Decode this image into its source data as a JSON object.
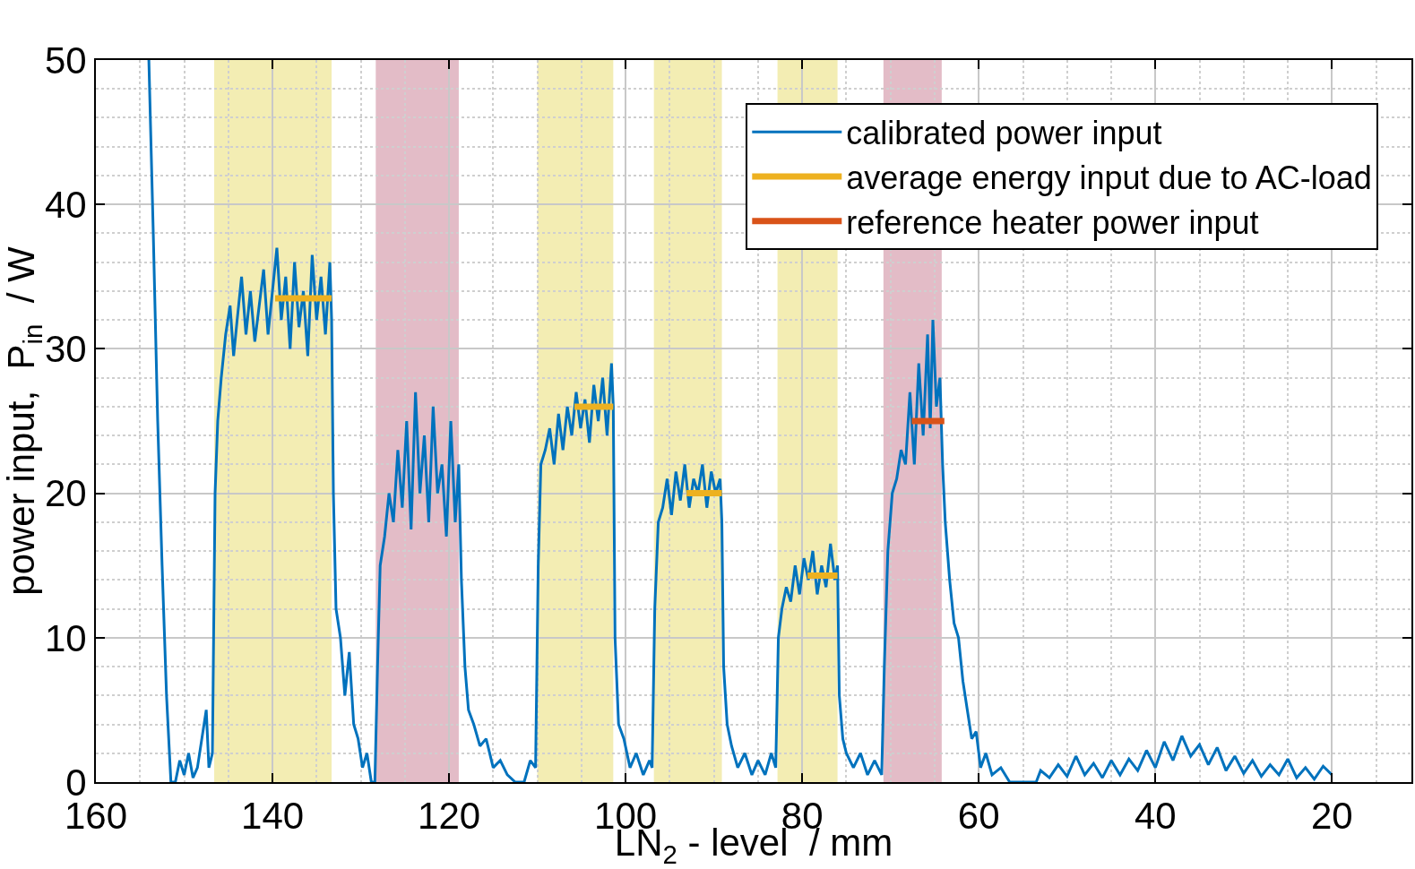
{
  "chart_data": {
    "type": "line",
    "xlabel": "LN$_{2}$ - level  / mm",
    "ylabel": "power input,  P$_{in}$  / W",
    "xlim": [
      160,
      11
    ],
    "xticks": [
      160,
      140,
      120,
      100,
      80,
      60,
      40,
      20
    ],
    "ylim": [
      0,
      50
    ],
    "yticks": [
      0,
      10,
      20,
      30,
      40,
      50
    ],
    "grid": true,
    "legend": "top right",
    "marker": "none",
    "line_style": "solid",
    "series": [
      {
        "name": "calibrated power input",
        "color": "#0072bd",
        "x": [
          154,
          153.5,
          153,
          152.5,
          152,
          151.5,
          151,
          150.5,
          150,
          149.5,
          149,
          148.5,
          148,
          147.5,
          147.2,
          146.8,
          146.5,
          146.2,
          145.8,
          145.3,
          144.8,
          144.4,
          144,
          143.5,
          143,
          142.5,
          142,
          141.5,
          141,
          140.5,
          140,
          139.5,
          139,
          138.5,
          138,
          137.5,
          137,
          136.5,
          136,
          135.5,
          135,
          134.5,
          134,
          133.5,
          133.3,
          133.1,
          132.8,
          132.3,
          131.8,
          131.3,
          130.8,
          130.3,
          129.8,
          129.3,
          128.8,
          128.4,
          128.1,
          127.8,
          127.3,
          126.8,
          126.3,
          125.8,
          125.3,
          124.8,
          124.3,
          123.8,
          123.3,
          122.8,
          122.3,
          121.8,
          121.3,
          120.8,
          120.3,
          119.8,
          119.3,
          118.9,
          118.6,
          118.2,
          117.8,
          117.2,
          116.5,
          115.8,
          115,
          114.2,
          113.4,
          112.5,
          111.5,
          110.8,
          110.2,
          109.9,
          109.6,
          109.1,
          108.6,
          108.1,
          107.6,
          107.1,
          106.6,
          106.1,
          105.6,
          105.1,
          104.6,
          104.1,
          103.6,
          103.1,
          102.6,
          102.1,
          101.6,
          101.4,
          101.2,
          100.8,
          100.2,
          99.5,
          98.8,
          98,
          97.3,
          97,
          96.7,
          96.3,
          95.8,
          95.3,
          94.8,
          94.3,
          93.8,
          93.3,
          92.8,
          92.3,
          91.8,
          91.3,
          90.8,
          90.3,
          89.8,
          89.3,
          89.1,
          88.9,
          88.5,
          88,
          87.3,
          86.5,
          85.7,
          85,
          84.2,
          83.5,
          83,
          82.7,
          82.3,
          81.8,
          81.3,
          80.8,
          80.3,
          79.8,
          79.3,
          78.8,
          78.3,
          77.8,
          77.3,
          76.8,
          76.3,
          76,
          75.8,
          75.4,
          75,
          74.2,
          73.4,
          72.6,
          71.8,
          71,
          70.7,
          70.3,
          69.8,
          69.3,
          68.8,
          68.3,
          67.8,
          67.3,
          66.8,
          66.3,
          65.8,
          65.5,
          65.2,
          64.8,
          64.4,
          64.1,
          63.8,
          63.3,
          62.8,
          62.3,
          61.8,
          61.3,
          60.8,
          60.3,
          59.8,
          59.2,
          58.5,
          57.5,
          56.5,
          53.5,
          53,
          52,
          51,
          50,
          49,
          48,
          47,
          46,
          45,
          44,
          43,
          42,
          41,
          40,
          39,
          38,
          37,
          36,
          35,
          34,
          33,
          32,
          31,
          30,
          29,
          28,
          27,
          26,
          25,
          24,
          23,
          22,
          21,
          20
        ],
        "values": [
          50,
          38,
          25,
          15,
          6,
          0,
          0,
          1.5,
          0.5,
          2,
          0.3,
          1,
          3,
          5,
          1,
          2,
          20,
          25,
          28,
          31,
          33,
          29.5,
          32,
          35,
          31,
          34,
          30.5,
          33,
          35.5,
          31,
          34,
          37,
          32,
          35,
          30,
          36,
          31.5,
          34,
          29.5,
          36.5,
          32,
          35,
          31,
          36,
          32,
          20,
          12,
          10,
          6,
          9,
          4,
          3,
          1,
          2,
          0,
          0,
          8,
          15,
          17,
          20,
          18,
          23,
          19,
          25,
          17.5,
          27,
          20,
          24,
          18,
          26,
          20,
          22,
          17,
          25,
          18,
          22,
          14,
          8,
          5,
          4,
          2.5,
          3,
          1,
          1.5,
          0.5,
          0,
          0,
          1.5,
          1,
          15,
          22,
          23,
          24.5,
          22,
          25.5,
          23,
          26,
          24,
          27,
          24.5,
          26.5,
          23.5,
          27.5,
          25,
          28,
          24,
          29,
          26,
          10,
          4,
          3,
          1,
          2,
          0.5,
          1.5,
          1,
          12,
          18,
          19,
          21,
          18.5,
          21.5,
          19.5,
          22,
          19,
          21,
          20,
          22,
          19,
          21.5,
          20,
          21,
          18,
          8,
          4,
          2.5,
          1,
          2,
          0.5,
          1.5,
          0.5,
          2,
          1,
          10,
          12,
          13.5,
          12.5,
          15,
          13,
          15.5,
          14,
          16,
          13,
          15,
          13.5,
          16.5,
          14,
          15,
          6,
          3,
          2,
          1,
          2,
          0.5,
          1.5,
          0.5,
          8,
          16,
          20,
          21,
          23,
          22,
          27,
          22,
          29,
          24,
          31,
          24.5,
          32,
          26,
          28,
          22,
          18,
          14,
          11,
          10,
          7,
          5,
          3,
          3.5,
          1,
          2,
          0.5,
          1,
          0,
          0,
          0.8,
          0.3,
          1.2,
          0.4,
          1.8,
          0.5,
          1.3,
          0.3,
          1.5,
          0.5,
          1.6,
          0.8,
          2.2,
          1,
          2.8,
          1.5,
          3.2,
          1.8,
          2.6,
          1.2,
          2.4,
          0.8,
          1.8,
          0.6,
          1.5,
          0.4,
          1.2,
          0.5,
          1.6,
          0.3,
          1,
          0.2,
          1.1,
          0.5
        ]
      },
      {
        "name": "average energy input due to AC-load",
        "color": "#edb120",
        "x": [
          139.7,
          133.3,
          null,
          105.8,
          101.4,
          null,
          93.1,
          89.1,
          null,
          79.4,
          76
        ],
        "values": [
          33.5,
          33.5,
          null,
          26,
          26,
          null,
          20,
          20,
          null,
          14.3,
          14.3
        ]
      },
      {
        "name": "reference heater power input",
        "color": "#d95319",
        "x": [
          67.6,
          63.9
        ],
        "values": [
          25,
          25
        ]
      }
    ],
    "bands": [
      {
        "axis": "x",
        "from": 146.6,
        "to": 133.3,
        "color": "#f3edb3"
      },
      {
        "axis": "x",
        "from": 128.3,
        "to": 118.9,
        "color": "#e3bcc7"
      },
      {
        "axis": "x",
        "from": 110,
        "to": 101.4,
        "color": "#f3edb3"
      },
      {
        "axis": "x",
        "from": 96.8,
        "to": 89.1,
        "color": "#f3edb3"
      },
      {
        "axis": "x",
        "from": 82.8,
        "to": 76,
        "color": "#f3edb3"
      },
      {
        "axis": "x",
        "from": 70.8,
        "to": 64.2,
        "color": "#e3bcc7"
      }
    ]
  }
}
